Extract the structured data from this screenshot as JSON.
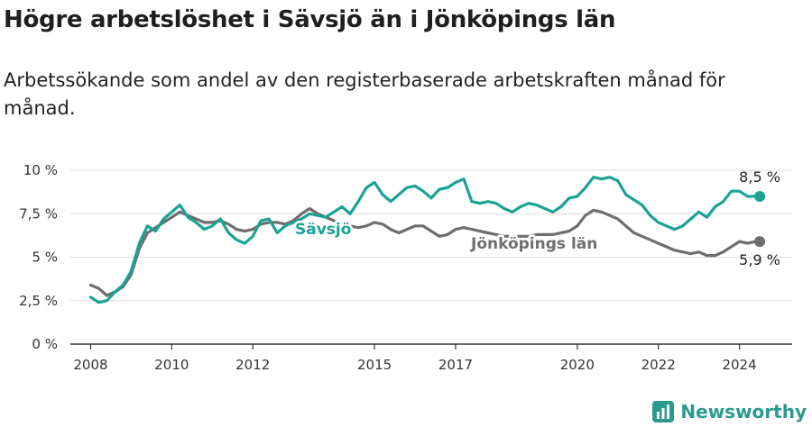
{
  "header": {
    "title": "Högre arbetslöshet i Sävsjö än i Jönköpings län",
    "subtitle": "Arbetssökande som andel av den registerbaserade arbetskraften månad för månad."
  },
  "brand": {
    "name": "Newsworthy"
  },
  "colors": {
    "savsjo": "#1aa393",
    "lan": "#6e6e6e",
    "grid": "#dddddd",
    "axis": "#333333",
    "brand": "#2b9a8c"
  },
  "chart_data": {
    "type": "line",
    "title": "Högre arbetslöshet i Sävsjö än i Jönköpings län",
    "subtitle": "Arbetssökande som andel av den registerbaserade arbetskraften månad för månad.",
    "xlabel": "",
    "ylabel": "",
    "xlim": [
      2007.5,
      2025.3
    ],
    "ylim": [
      0,
      10
    ],
    "y_ticks": [
      {
        "value": 0,
        "label": "0 %"
      },
      {
        "value": 2.5,
        "label": "2,5 %"
      },
      {
        "value": 5,
        "label": "5 %"
      },
      {
        "value": 7.5,
        "label": "7,5 %"
      },
      {
        "value": 10,
        "label": "10 %"
      }
    ],
    "x_ticks": [
      {
        "value": 2008,
        "label": "2008"
      },
      {
        "value": 2010,
        "label": "2010"
      },
      {
        "value": 2012,
        "label": "2012"
      },
      {
        "value": 2015,
        "label": "2015"
      },
      {
        "value": 2017,
        "label": "2017"
      },
      {
        "value": 2020,
        "label": "2020"
      },
      {
        "value": 2022,
        "label": "2022"
      },
      {
        "value": 2024,
        "label": "2024"
      }
    ],
    "grid": true,
    "series": [
      {
        "name": "Sävsjö",
        "color": "#1aa393",
        "end_label": "8,5 %",
        "points": [
          [
            2008.0,
            2.7
          ],
          [
            2008.2,
            2.4
          ],
          [
            2008.4,
            2.5
          ],
          [
            2008.6,
            3.0
          ],
          [
            2008.8,
            3.4
          ],
          [
            2009.0,
            4.2
          ],
          [
            2009.2,
            5.8
          ],
          [
            2009.4,
            6.8
          ],
          [
            2009.6,
            6.5
          ],
          [
            2009.8,
            7.2
          ],
          [
            2010.0,
            7.6
          ],
          [
            2010.2,
            8.0
          ],
          [
            2010.4,
            7.3
          ],
          [
            2010.6,
            7.0
          ],
          [
            2010.8,
            6.6
          ],
          [
            2011.0,
            6.8
          ],
          [
            2011.2,
            7.2
          ],
          [
            2011.4,
            6.4
          ],
          [
            2011.6,
            6.0
          ],
          [
            2011.8,
            5.8
          ],
          [
            2012.0,
            6.2
          ],
          [
            2012.2,
            7.1
          ],
          [
            2012.4,
            7.2
          ],
          [
            2012.6,
            6.4
          ],
          [
            2012.8,
            6.8
          ],
          [
            2013.0,
            7.0
          ],
          [
            2013.2,
            7.2
          ],
          [
            2013.4,
            7.5
          ],
          [
            2013.6,
            7.4
          ],
          [
            2013.8,
            7.3
          ],
          [
            2014.0,
            7.6
          ],
          [
            2014.2,
            7.9
          ],
          [
            2014.4,
            7.5
          ],
          [
            2014.6,
            8.2
          ],
          [
            2014.8,
            9.0
          ],
          [
            2015.0,
            9.3
          ],
          [
            2015.2,
            8.6
          ],
          [
            2015.4,
            8.2
          ],
          [
            2015.6,
            8.6
          ],
          [
            2015.8,
            9.0
          ],
          [
            2016.0,
            9.1
          ],
          [
            2016.2,
            8.8
          ],
          [
            2016.4,
            8.4
          ],
          [
            2016.6,
            8.9
          ],
          [
            2016.8,
            9.0
          ],
          [
            2017.0,
            9.3
          ],
          [
            2017.2,
            9.5
          ],
          [
            2017.4,
            8.2
          ],
          [
            2017.6,
            8.1
          ],
          [
            2017.8,
            8.2
          ],
          [
            2018.0,
            8.1
          ],
          [
            2018.2,
            7.8
          ],
          [
            2018.4,
            7.6
          ],
          [
            2018.6,
            7.9
          ],
          [
            2018.8,
            8.1
          ],
          [
            2019.0,
            8.0
          ],
          [
            2019.2,
            7.8
          ],
          [
            2019.4,
            7.6
          ],
          [
            2019.6,
            7.9
          ],
          [
            2019.8,
            8.4
          ],
          [
            2020.0,
            8.5
          ],
          [
            2020.2,
            9.0
          ],
          [
            2020.4,
            9.6
          ],
          [
            2020.6,
            9.5
          ],
          [
            2020.8,
            9.6
          ],
          [
            2021.0,
            9.4
          ],
          [
            2021.2,
            8.6
          ],
          [
            2021.4,
            8.3
          ],
          [
            2021.6,
            8.0
          ],
          [
            2021.8,
            7.4
          ],
          [
            2022.0,
            7.0
          ],
          [
            2022.2,
            6.8
          ],
          [
            2022.4,
            6.6
          ],
          [
            2022.6,
            6.8
          ],
          [
            2022.8,
            7.2
          ],
          [
            2023.0,
            7.6
          ],
          [
            2023.2,
            7.3
          ],
          [
            2023.4,
            7.9
          ],
          [
            2023.6,
            8.2
          ],
          [
            2023.8,
            8.8
          ],
          [
            2024.0,
            8.8
          ],
          [
            2024.2,
            8.5
          ],
          [
            2024.4,
            8.5
          ],
          [
            2024.5,
            8.5
          ]
        ]
      },
      {
        "name": "Jönköpings län",
        "color": "#6e6e6e",
        "end_label": "5,9 %",
        "points": [
          [
            2008.0,
            3.4
          ],
          [
            2008.2,
            3.2
          ],
          [
            2008.4,
            2.8
          ],
          [
            2008.6,
            3.0
          ],
          [
            2008.8,
            3.3
          ],
          [
            2009.0,
            4.0
          ],
          [
            2009.2,
            5.5
          ],
          [
            2009.4,
            6.4
          ],
          [
            2009.6,
            6.7
          ],
          [
            2009.8,
            7.0
          ],
          [
            2010.0,
            7.3
          ],
          [
            2010.2,
            7.6
          ],
          [
            2010.4,
            7.4
          ],
          [
            2010.6,
            7.2
          ],
          [
            2010.8,
            7.0
          ],
          [
            2011.0,
            7.0
          ],
          [
            2011.2,
            7.1
          ],
          [
            2011.4,
            6.9
          ],
          [
            2011.6,
            6.6
          ],
          [
            2011.8,
            6.5
          ],
          [
            2012.0,
            6.6
          ],
          [
            2012.2,
            6.9
          ],
          [
            2012.4,
            7.0
          ],
          [
            2012.6,
            7.0
          ],
          [
            2012.8,
            6.9
          ],
          [
            2013.0,
            7.1
          ],
          [
            2013.2,
            7.5
          ],
          [
            2013.4,
            7.8
          ],
          [
            2013.6,
            7.5
          ],
          [
            2013.8,
            7.3
          ],
          [
            2014.0,
            7.1
          ],
          [
            2014.2,
            6.9
          ],
          [
            2014.4,
            6.8
          ],
          [
            2014.6,
            6.7
          ],
          [
            2014.8,
            6.8
          ],
          [
            2015.0,
            7.0
          ],
          [
            2015.2,
            6.9
          ],
          [
            2015.4,
            6.6
          ],
          [
            2015.6,
            6.4
          ],
          [
            2015.8,
            6.6
          ],
          [
            2016.0,
            6.8
          ],
          [
            2016.2,
            6.8
          ],
          [
            2016.4,
            6.5
          ],
          [
            2016.6,
            6.2
          ],
          [
            2016.8,
            6.3
          ],
          [
            2017.0,
            6.6
          ],
          [
            2017.2,
            6.7
          ],
          [
            2017.4,
            6.6
          ],
          [
            2017.6,
            6.5
          ],
          [
            2017.8,
            6.4
          ],
          [
            2018.0,
            6.3
          ],
          [
            2018.2,
            6.2
          ],
          [
            2018.4,
            6.2
          ],
          [
            2018.6,
            6.2
          ],
          [
            2018.8,
            6.2
          ],
          [
            2019.0,
            6.3
          ],
          [
            2019.2,
            6.3
          ],
          [
            2019.4,
            6.3
          ],
          [
            2019.6,
            6.4
          ],
          [
            2019.8,
            6.5
          ],
          [
            2020.0,
            6.8
          ],
          [
            2020.2,
            7.4
          ],
          [
            2020.4,
            7.7
          ],
          [
            2020.6,
            7.6
          ],
          [
            2020.8,
            7.4
          ],
          [
            2021.0,
            7.2
          ],
          [
            2021.2,
            6.8
          ],
          [
            2021.4,
            6.4
          ],
          [
            2021.6,
            6.2
          ],
          [
            2021.8,
            6.0
          ],
          [
            2022.0,
            5.8
          ],
          [
            2022.2,
            5.6
          ],
          [
            2022.4,
            5.4
          ],
          [
            2022.6,
            5.3
          ],
          [
            2022.8,
            5.2
          ],
          [
            2023.0,
            5.3
          ],
          [
            2023.2,
            5.1
          ],
          [
            2023.4,
            5.1
          ],
          [
            2023.6,
            5.3
          ],
          [
            2023.8,
            5.6
          ],
          [
            2024.0,
            5.9
          ],
          [
            2024.2,
            5.8
          ],
          [
            2024.4,
            5.9
          ],
          [
            2024.5,
            5.9
          ]
        ]
      }
    ]
  }
}
